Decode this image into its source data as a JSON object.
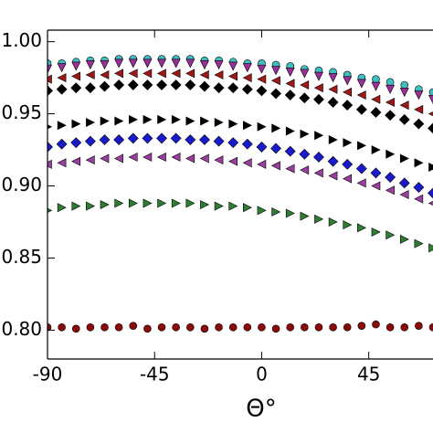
{
  "chart_data": {
    "type": "scatter",
    "x_label": "Θ°",
    "x": [
      -90,
      -84,
      -78,
      -72,
      -66,
      -60,
      -54,
      -48,
      -42,
      -36,
      -30,
      -24,
      -18,
      -12,
      -6,
      0,
      6,
      12,
      18,
      24,
      30,
      36,
      42,
      48,
      54,
      60,
      66,
      72
    ],
    "xlim": [
      -90,
      72
    ],
    "xticks": [
      -90,
      -45,
      0,
      45
    ],
    "ylim": [
      0.78,
      1.008
    ],
    "yticks": [
      {
        "value": 0.8,
        "label": "0.80"
      },
      {
        "value": 0.85,
        "label": "0.85"
      },
      {
        "value": 0.9,
        "label": "0.90"
      },
      {
        "value": 0.95,
        "label": "0.95"
      },
      {
        "value": 1.0,
        "label": "1.00"
      }
    ],
    "series": [
      {
        "color": "#3fc0c0",
        "marker": "circle",
        "values": [
          0.985,
          0.985,
          0.986,
          0.987,
          0.987,
          0.988,
          0.988,
          0.988,
          0.988,
          0.988,
          0.988,
          0.987,
          0.987,
          0.986,
          0.985,
          0.985,
          0.984,
          0.983,
          0.981,
          0.98,
          0.979,
          0.977,
          0.975,
          0.974,
          0.972,
          0.97,
          0.967,
          0.965
        ]
      },
      {
        "color": "#9a2f9a",
        "marker": "triangle-down",
        "values": [
          0.981,
          0.982,
          0.983,
          0.984,
          0.984,
          0.985,
          0.985,
          0.985,
          0.985,
          0.985,
          0.985,
          0.984,
          0.984,
          0.983,
          0.982,
          0.981,
          0.98,
          0.979,
          0.978,
          0.976,
          0.975,
          0.973,
          0.971,
          0.969,
          0.967,
          0.965,
          0.963,
          0.96
        ]
      },
      {
        "color": "#a01818",
        "marker": "triangle-left",
        "values": [
          0.974,
          0.975,
          0.976,
          0.977,
          0.977,
          0.978,
          0.978,
          0.978,
          0.978,
          0.978,
          0.978,
          0.977,
          0.977,
          0.976,
          0.975,
          0.974,
          0.973,
          0.971,
          0.97,
          0.968,
          0.967,
          0.965,
          0.963,
          0.96,
          0.958,
          0.956,
          0.953,
          0.95
        ]
      },
      {
        "color": "#000000",
        "marker": "diamond",
        "values": [
          0.966,
          0.967,
          0.968,
          0.968,
          0.969,
          0.97,
          0.97,
          0.97,
          0.97,
          0.97,
          0.97,
          0.969,
          0.968,
          0.968,
          0.967,
          0.966,
          0.964,
          0.963,
          0.961,
          0.96,
          0.958,
          0.956,
          0.953,
          0.951,
          0.949,
          0.946,
          0.943,
          0.94
        ]
      },
      {
        "color": "#000000",
        "marker": "triangle-right",
        "values": [
          0.941,
          0.942,
          0.943,
          0.944,
          0.945,
          0.945,
          0.946,
          0.946,
          0.946,
          0.946,
          0.945,
          0.945,
          0.944,
          0.943,
          0.942,
          0.941,
          0.94,
          0.938,
          0.936,
          0.935,
          0.932,
          0.93,
          0.928,
          0.925,
          0.922,
          0.919,
          0.916,
          0.913
        ]
      },
      {
        "color": "#1a1acd",
        "marker": "diamond",
        "values": [
          0.927,
          0.929,
          0.93,
          0.931,
          0.932,
          0.932,
          0.933,
          0.933,
          0.933,
          0.933,
          0.932,
          0.932,
          0.931,
          0.93,
          0.929,
          0.927,
          0.926,
          0.924,
          0.922,
          0.92,
          0.917,
          0.915,
          0.912,
          0.909,
          0.906,
          0.902,
          0.899,
          0.895
        ]
      },
      {
        "color": "#9a3fa0",
        "marker": "triangle-left",
        "values": [
          0.915,
          0.916,
          0.917,
          0.918,
          0.919,
          0.919,
          0.92,
          0.92,
          0.92,
          0.92,
          0.919,
          0.919,
          0.918,
          0.917,
          0.916,
          0.915,
          0.914,
          0.912,
          0.911,
          0.909,
          0.907,
          0.905,
          0.902,
          0.9,
          0.897,
          0.894,
          0.891,
          0.888
        ]
      },
      {
        "color": "#2e7d32",
        "marker": "triangle-right",
        "values": [
          0.883,
          0.885,
          0.886,
          0.886,
          0.887,
          0.888,
          0.888,
          0.888,
          0.888,
          0.888,
          0.888,
          0.887,
          0.886,
          0.886,
          0.885,
          0.883,
          0.882,
          0.881,
          0.879,
          0.877,
          0.875,
          0.873,
          0.871,
          0.868,
          0.866,
          0.863,
          0.86,
          0.857
        ]
      },
      {
        "color": "#8b0a0a",
        "marker": "circle",
        "values": [
          0.802,
          0.802,
          0.801,
          0.802,
          0.802,
          0.802,
          0.803,
          0.801,
          0.802,
          0.802,
          0.802,
          0.801,
          0.802,
          0.802,
          0.802,
          0.802,
          0.801,
          0.802,
          0.802,
          0.802,
          0.802,
          0.802,
          0.803,
          0.804,
          0.802,
          0.802,
          0.803,
          0.802
        ]
      }
    ]
  }
}
